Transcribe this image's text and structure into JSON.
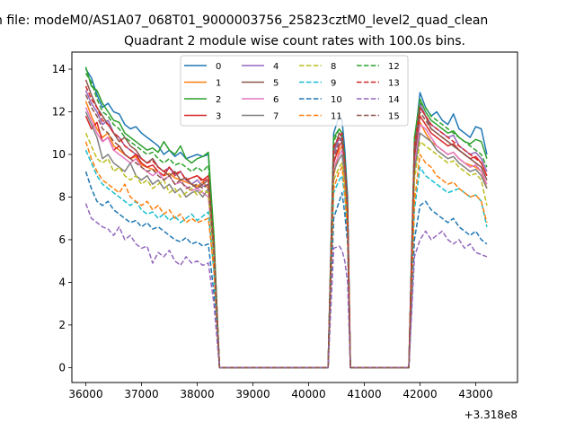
{
  "chart_data": {
    "type": "line",
    "suptitle": "n file: modeM0/AS1A07_068T01_9000003756_25823cztM0_level2_quad_clean",
    "title": "Quadrant 2 module wise count rates with 100.0s bins.",
    "xlabel": "",
    "ylabel": "",
    "x_offset_label": "+3.318e8",
    "xlim": [
      35750,
      43750
    ],
    "ylim": [
      -0.7,
      14.8
    ],
    "xticks": [
      36000,
      37000,
      38000,
      39000,
      40000,
      41000,
      42000,
      43000
    ],
    "yticks": [
      0,
      2,
      4,
      6,
      8,
      10,
      12,
      14
    ],
    "xtick_labels": [
      "36000",
      "37000",
      "38000",
      "39000",
      "40000",
      "41000",
      "42000",
      "43000"
    ],
    "ytick_labels": [
      "0",
      "2",
      "4",
      "6",
      "8",
      "10",
      "12",
      "14"
    ],
    "legend_location": "upper center",
    "legend_columns": 4,
    "segments": [
      {
        "x_start": 36000,
        "x_end": 38300,
        "step": 100
      },
      {
        "x_start": 38400,
        "x_end": 38550,
        "step": 150
      },
      {
        "x_start": 38550,
        "x_end": 40550,
        "step": 100
      },
      {
        "x_start": 40600,
        "x_end": 40800,
        "step": 50
      },
      {
        "x_start": 40850,
        "x_end": 40900,
        "step": 50
      },
      {
        "x_start": 40900,
        "x_end": 42150,
        "step": 100
      },
      {
        "x_start": 42200,
        "x_end": 43450,
        "step": 100
      }
    ],
    "series": [
      {
        "name": "0",
        "color": "#1f77b4",
        "dash": "solid",
        "seg1": [
          14.0,
          13.6,
          12.8,
          12.2,
          12.4,
          12.0,
          11.9,
          11.4,
          11.2,
          11.3,
          11.0,
          10.8,
          10.6,
          10.4,
          10.0,
          10.2,
          9.9,
          10.1,
          9.8,
          9.9,
          10.0,
          9.9,
          10.0
        ],
        "seg2": [
          6.0,
          0
        ],
        "seg4": [
          11.0,
          11.8,
          11.6,
          10.2,
          8.0
        ],
        "seg7": [
          10.5,
          12.9,
          12.2,
          11.8,
          12.0,
          11.6,
          11.4,
          11.9,
          11.2,
          11.0,
          10.8,
          11.3,
          11.2,
          10.0
        ]
      },
      {
        "name": "1",
        "color": "#ff7f0e",
        "dash": "solid",
        "seg1": [
          12.5,
          11.8,
          11.2,
          10.8,
          11.0,
          10.4,
          10.2,
          10.0,
          9.8,
          9.9,
          9.5,
          9.4,
          9.3,
          9.2,
          9.0,
          9.1,
          8.9,
          8.8,
          8.7,
          8.6,
          8.5,
          8.7,
          8.4
        ],
        "seg2": [
          5.5,
          0
        ],
        "seg4": [
          9.0,
          10.2,
          10.4,
          9.0,
          7.0
        ],
        "seg7": [
          9.5,
          11.5,
          11.0,
          10.6,
          10.4,
          10.2,
          10.0,
          10.1,
          9.8,
          9.6,
          9.5,
          9.4,
          9.2,
          8.4
        ]
      },
      {
        "name": "2",
        "color": "#2ca02c",
        "dash": "solid",
        "seg1": [
          14.1,
          13.2,
          13.0,
          12.4,
          12.0,
          11.6,
          11.5,
          11.0,
          10.8,
          10.6,
          10.4,
          10.2,
          10.3,
          10.1,
          10.6,
          10.2,
          10.0,
          10.4,
          9.8,
          9.6,
          9.8,
          9.9,
          10.1
        ],
        "seg2": [
          6.2,
          0
        ],
        "seg4": [
          10.8,
          11.2,
          11.0,
          9.8,
          7.5
        ],
        "seg7": [
          10.8,
          12.6,
          12.0,
          11.6,
          11.4,
          11.2,
          11.0,
          11.1,
          10.8,
          10.6,
          10.5,
          10.7,
          10.6,
          9.8
        ]
      },
      {
        "name": "3",
        "color": "#d62728",
        "dash": "solid",
        "seg1": [
          11.8,
          11.2,
          11.5,
          10.6,
          10.8,
          10.2,
          10.4,
          10.0,
          9.8,
          10.0,
          9.6,
          9.4,
          9.5,
          9.2,
          9.0,
          9.4,
          9.1,
          9.2,
          8.8,
          8.9,
          9.0,
          8.8,
          9.0
        ],
        "seg2": [
          5.6,
          0
        ],
        "seg4": [
          9.6,
          10.4,
          10.6,
          9.2,
          7.2
        ],
        "seg7": [
          9.8,
          11.8,
          11.4,
          11.0,
          10.8,
          10.6,
          10.4,
          10.5,
          10.2,
          10.0,
          9.8,
          9.9,
          9.6,
          9.0
        ]
      },
      {
        "name": "4",
        "color": "#9467bd",
        "dash": "solid",
        "seg1": [
          13.0,
          12.4,
          12.0,
          11.4,
          11.6,
          11.0,
          10.8,
          10.4,
          10.2,
          10.0,
          9.8,
          9.6,
          9.8,
          9.4,
          9.2,
          9.4,
          9.0,
          9.2,
          8.8,
          8.6,
          8.8,
          8.5,
          8.6
        ],
        "seg2": [
          5.7,
          0
        ],
        "seg4": [
          10.0,
          10.8,
          10.6,
          9.4,
          7.4
        ],
        "seg7": [
          10.2,
          12.4,
          11.8,
          11.4,
          11.2,
          11.0,
          10.8,
          10.9,
          10.4,
          10.2,
          10.0,
          10.1,
          9.8,
          9.2
        ]
      },
      {
        "name": "5",
        "color": "#8c564b",
        "dash": "solid",
        "seg1": [
          13.5,
          12.8,
          12.2,
          11.8,
          11.4,
          11.0,
          10.6,
          10.8,
          10.4,
          10.2,
          9.8,
          9.6,
          9.8,
          9.4,
          9.2,
          9.0,
          9.2,
          8.8,
          8.9,
          8.6,
          8.4,
          8.6,
          8.8
        ],
        "seg2": [
          5.6,
          0
        ],
        "seg4": [
          10.2,
          11.0,
          10.8,
          9.4,
          7.3
        ],
        "seg7": [
          10.0,
          12.2,
          11.8,
          11.2,
          11.0,
          10.8,
          10.6,
          10.4,
          10.2,
          10.0,
          9.8,
          9.6,
          9.4,
          8.8
        ]
      },
      {
        "name": "6",
        "color": "#e377c2",
        "dash": "solid",
        "seg1": [
          12.2,
          11.6,
          11.0,
          10.6,
          10.8,
          10.2,
          10.0,
          9.8,
          9.6,
          9.8,
          9.4,
          9.2,
          9.0,
          9.2,
          8.8,
          9.0,
          8.6,
          8.7,
          8.5,
          8.3,
          8.4,
          8.2,
          8.0
        ],
        "seg2": [
          5.3,
          0
        ],
        "seg4": [
          9.4,
          10.0,
          10.2,
          9.0,
          7.0
        ],
        "seg7": [
          9.4,
          11.4,
          11.2,
          10.8,
          10.4,
          10.2,
          10.0,
          10.1,
          9.8,
          9.6,
          9.4,
          9.5,
          9.2,
          8.6
        ]
      },
      {
        "name": "7",
        "color": "#7f7f7f",
        "dash": "solid",
        "seg1": [
          12.0,
          11.4,
          10.8,
          9.8,
          10.0,
          9.6,
          9.4,
          9.2,
          9.6,
          9.0,
          8.8,
          9.0,
          8.6,
          8.8,
          8.4,
          8.6,
          8.2,
          8.4,
          8.0,
          8.2,
          8.3,
          8.0,
          8.4
        ],
        "seg2": [
          5.2,
          0
        ],
        "seg4": [
          9.2,
          9.8,
          10.0,
          8.8,
          6.8
        ],
        "seg7": [
          9.2,
          11.0,
          10.8,
          10.6,
          10.2,
          10.0,
          9.8,
          9.9,
          9.6,
          9.4,
          9.2,
          9.3,
          9.0,
          8.4
        ]
      },
      {
        "name": "8",
        "color": "#bcbd22",
        "dash": "dashed",
        "seg1": [
          11.0,
          10.4,
          9.8,
          9.6,
          9.8,
          9.2,
          9.4,
          9.0,
          8.8,
          9.0,
          8.6,
          8.8,
          8.4,
          8.6,
          8.8,
          8.2,
          8.4,
          8.0,
          8.2,
          8.4,
          8.1,
          8.3,
          8.2
        ],
        "seg2": [
          5.1,
          0
        ],
        "seg4": [
          8.8,
          9.4,
          9.6,
          8.6,
          6.6
        ],
        "seg7": [
          8.8,
          10.6,
          10.4,
          10.2,
          10.0,
          9.8,
          9.6,
          9.7,
          9.4,
          9.2,
          9.0,
          9.1,
          8.8,
          7.6
        ]
      },
      {
        "name": "9",
        "color": "#17becf",
        "dash": "dashed",
        "seg1": [
          10.2,
          9.6,
          9.0,
          8.6,
          8.4,
          8.2,
          8.0,
          7.8,
          7.6,
          7.8,
          7.4,
          7.2,
          7.3,
          7.0,
          7.2,
          6.9,
          7.1,
          6.8,
          7.0,
          7.2,
          6.9,
          7.1,
          7.3
        ],
        "seg2": [
          4.5,
          0
        ],
        "seg4": [
          8.2,
          8.8,
          9.0,
          8.0,
          6.2
        ],
        "seg7": [
          7.4,
          9.4,
          9.0,
          8.8,
          8.6,
          8.4,
          8.2,
          8.3,
          8.4,
          8.2,
          8.0,
          8.1,
          7.8,
          6.6
        ]
      },
      {
        "name": "10",
        "color": "#1f77b4",
        "dash": "dashed",
        "seg1": [
          9.2,
          8.4,
          7.8,
          7.6,
          7.8,
          7.4,
          7.2,
          7.0,
          6.8,
          6.9,
          6.6,
          6.8,
          6.5,
          6.6,
          6.4,
          6.2,
          6.0,
          5.9,
          6.1,
          5.8,
          5.9,
          5.7,
          5.8
        ],
        "seg2": [
          3.5,
          0
        ],
        "seg4": [
          7.0,
          7.8,
          8.2,
          7.2,
          5.8
        ],
        "seg7": [
          6.0,
          7.6,
          7.8,
          7.4,
          7.2,
          7.0,
          6.8,
          7.0,
          6.6,
          6.4,
          6.2,
          6.4,
          6.0,
          5.8
        ]
      },
      {
        "name": "11",
        "color": "#ff7f0e",
        "dash": "dashed",
        "seg1": [
          10.6,
          9.8,
          9.2,
          8.8,
          8.6,
          8.4,
          8.2,
          8.6,
          8.0,
          7.8,
          7.6,
          7.8,
          7.4,
          7.6,
          7.2,
          7.4,
          7.0,
          7.2,
          6.8,
          7.0,
          6.8,
          6.9,
          7.0
        ],
        "seg2": [
          4.6,
          0
        ],
        "seg4": [
          8.4,
          9.2,
          9.4,
          8.2,
          6.4
        ],
        "seg7": [
          7.8,
          10.0,
          9.6,
          9.4,
          9.0,
          8.8,
          8.6,
          8.7,
          8.4,
          8.2,
          8.0,
          8.1,
          7.8,
          6.8
        ]
      },
      {
        "name": "12",
        "color": "#2ca02c",
        "dash": "dashed",
        "seg1": [
          13.8,
          13.4,
          12.6,
          12.0,
          11.8,
          11.4,
          11.2,
          10.8,
          10.6,
          10.4,
          10.2,
          10.0,
          10.1,
          9.8,
          9.6,
          9.8,
          9.5,
          9.6,
          9.4,
          9.2,
          9.4,
          9.2,
          9.5
        ],
        "seg2": [
          5.9,
          0
        ],
        "seg4": [
          10.6,
          11.2,
          11.0,
          9.6,
          7.6
        ],
        "seg7": [
          10.6,
          12.4,
          12.2,
          11.8,
          11.6,
          11.4,
          11.2,
          11.0,
          10.8,
          10.6,
          10.4,
          10.2,
          10.0,
          9.4
        ]
      },
      {
        "name": "13",
        "color": "#d62728",
        "dash": "dashed",
        "seg1": [
          13.2,
          12.6,
          12.2,
          11.6,
          11.4,
          11.0,
          10.8,
          10.4,
          10.2,
          10.0,
          9.8,
          9.6,
          9.7,
          9.4,
          9.2,
          9.4,
          9.0,
          9.2,
          8.8,
          8.9,
          9.0,
          8.7,
          8.9
        ],
        "seg2": [
          5.6,
          0
        ],
        "seg4": [
          10.4,
          10.8,
          11.0,
          9.6,
          7.4
        ],
        "seg7": [
          10.4,
          12.2,
          11.8,
          11.4,
          11.2,
          11.0,
          10.8,
          10.6,
          10.4,
          10.2,
          10.0,
          9.8,
          9.6,
          9.0
        ]
      },
      {
        "name": "14",
        "color": "#9467bd",
        "dash": "dashed",
        "seg1": [
          7.7,
          7.0,
          6.8,
          6.6,
          6.5,
          6.2,
          6.6,
          6.0,
          6.2,
          5.8,
          5.6,
          5.7,
          4.9,
          5.4,
          5.2,
          5.5,
          5.0,
          4.8,
          5.2,
          4.9,
          5.0,
          4.8,
          4.9
        ],
        "seg2": [
          3.0,
          0
        ],
        "seg4": [
          5.6,
          5.7,
          5.5,
          5.0,
          4.0
        ],
        "seg7": [
          5.2,
          6.0,
          6.4,
          6.0,
          6.2,
          6.4,
          6.0,
          5.8,
          6.0,
          5.6,
          5.8,
          5.4,
          5.3,
          5.2
        ]
      },
      {
        "name": "15",
        "color": "#8c564b",
        "dash": "dashed",
        "seg1": [
          12.8,
          12.2,
          11.8,
          11.2,
          11.0,
          10.6,
          10.4,
          10.0,
          9.8,
          9.6,
          9.4,
          9.2,
          9.3,
          9.0,
          8.8,
          9.0,
          8.6,
          8.8,
          8.4,
          8.5,
          8.6,
          8.4,
          8.6
        ],
        "seg2": [
          5.4,
          0
        ],
        "seg4": [
          9.8,
          10.6,
          10.8,
          9.4,
          7.2
        ],
        "seg7": [
          10.0,
          12.0,
          11.6,
          11.2,
          11.0,
          10.8,
          10.6,
          10.4,
          10.2,
          10.0,
          9.8,
          9.6,
          9.4,
          8.8
        ]
      }
    ]
  }
}
